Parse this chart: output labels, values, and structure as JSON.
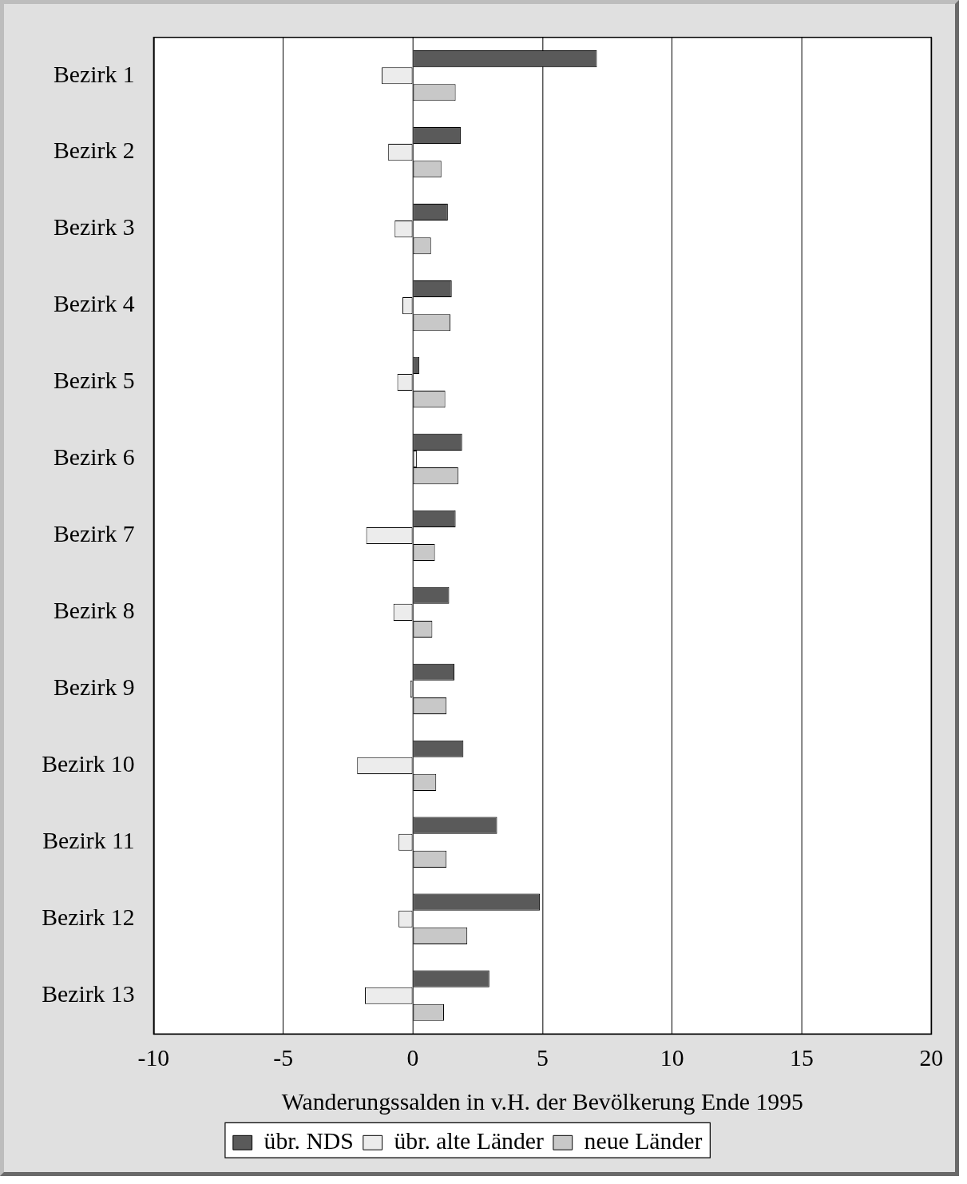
{
  "chart_data": {
    "type": "bar",
    "orientation": "horizontal",
    "xlabel": "Wanderungssalden in v.H. der Bevölkerung Ende 1995",
    "categories": [
      "Bezirk 1",
      "Bezirk 2",
      "Bezirk 3",
      "Bezirk 4",
      "Bezirk 5",
      "Bezirk 6",
      "Bezirk 7",
      "Bezirk 8",
      "Bezirk 9",
      "Bezirk 10",
      "Bezirk 11",
      "Bezirk 12",
      "Bezirk 13"
    ],
    "series": [
      {
        "name": "übr. NDS",
        "color": "#5a5a5a",
        "values": [
          7.1,
          1.85,
          1.35,
          1.5,
          0.25,
          1.9,
          1.65,
          1.4,
          1.6,
          1.95,
          3.25,
          4.9,
          2.95
        ]
      },
      {
        "name": "übr. alte Länder",
        "color": "#ececec",
        "values": [
          -1.2,
          -0.95,
          -0.7,
          -0.4,
          -0.6,
          0.15,
          -1.8,
          -0.75,
          -0.1,
          -2.15,
          -0.55,
          -0.55,
          -1.85
        ]
      },
      {
        "name": "neue Länder",
        "color": "#c8c8c8",
        "values": [
          1.65,
          1.1,
          0.7,
          1.45,
          1.25,
          1.75,
          0.85,
          0.75,
          1.3,
          0.9,
          1.3,
          2.1,
          1.2
        ]
      }
    ],
    "xlim": [
      -10,
      20
    ],
    "xticks": [
      -10,
      -5,
      0,
      5,
      10,
      15,
      20
    ],
    "grid": "x",
    "legend": "bottom"
  }
}
